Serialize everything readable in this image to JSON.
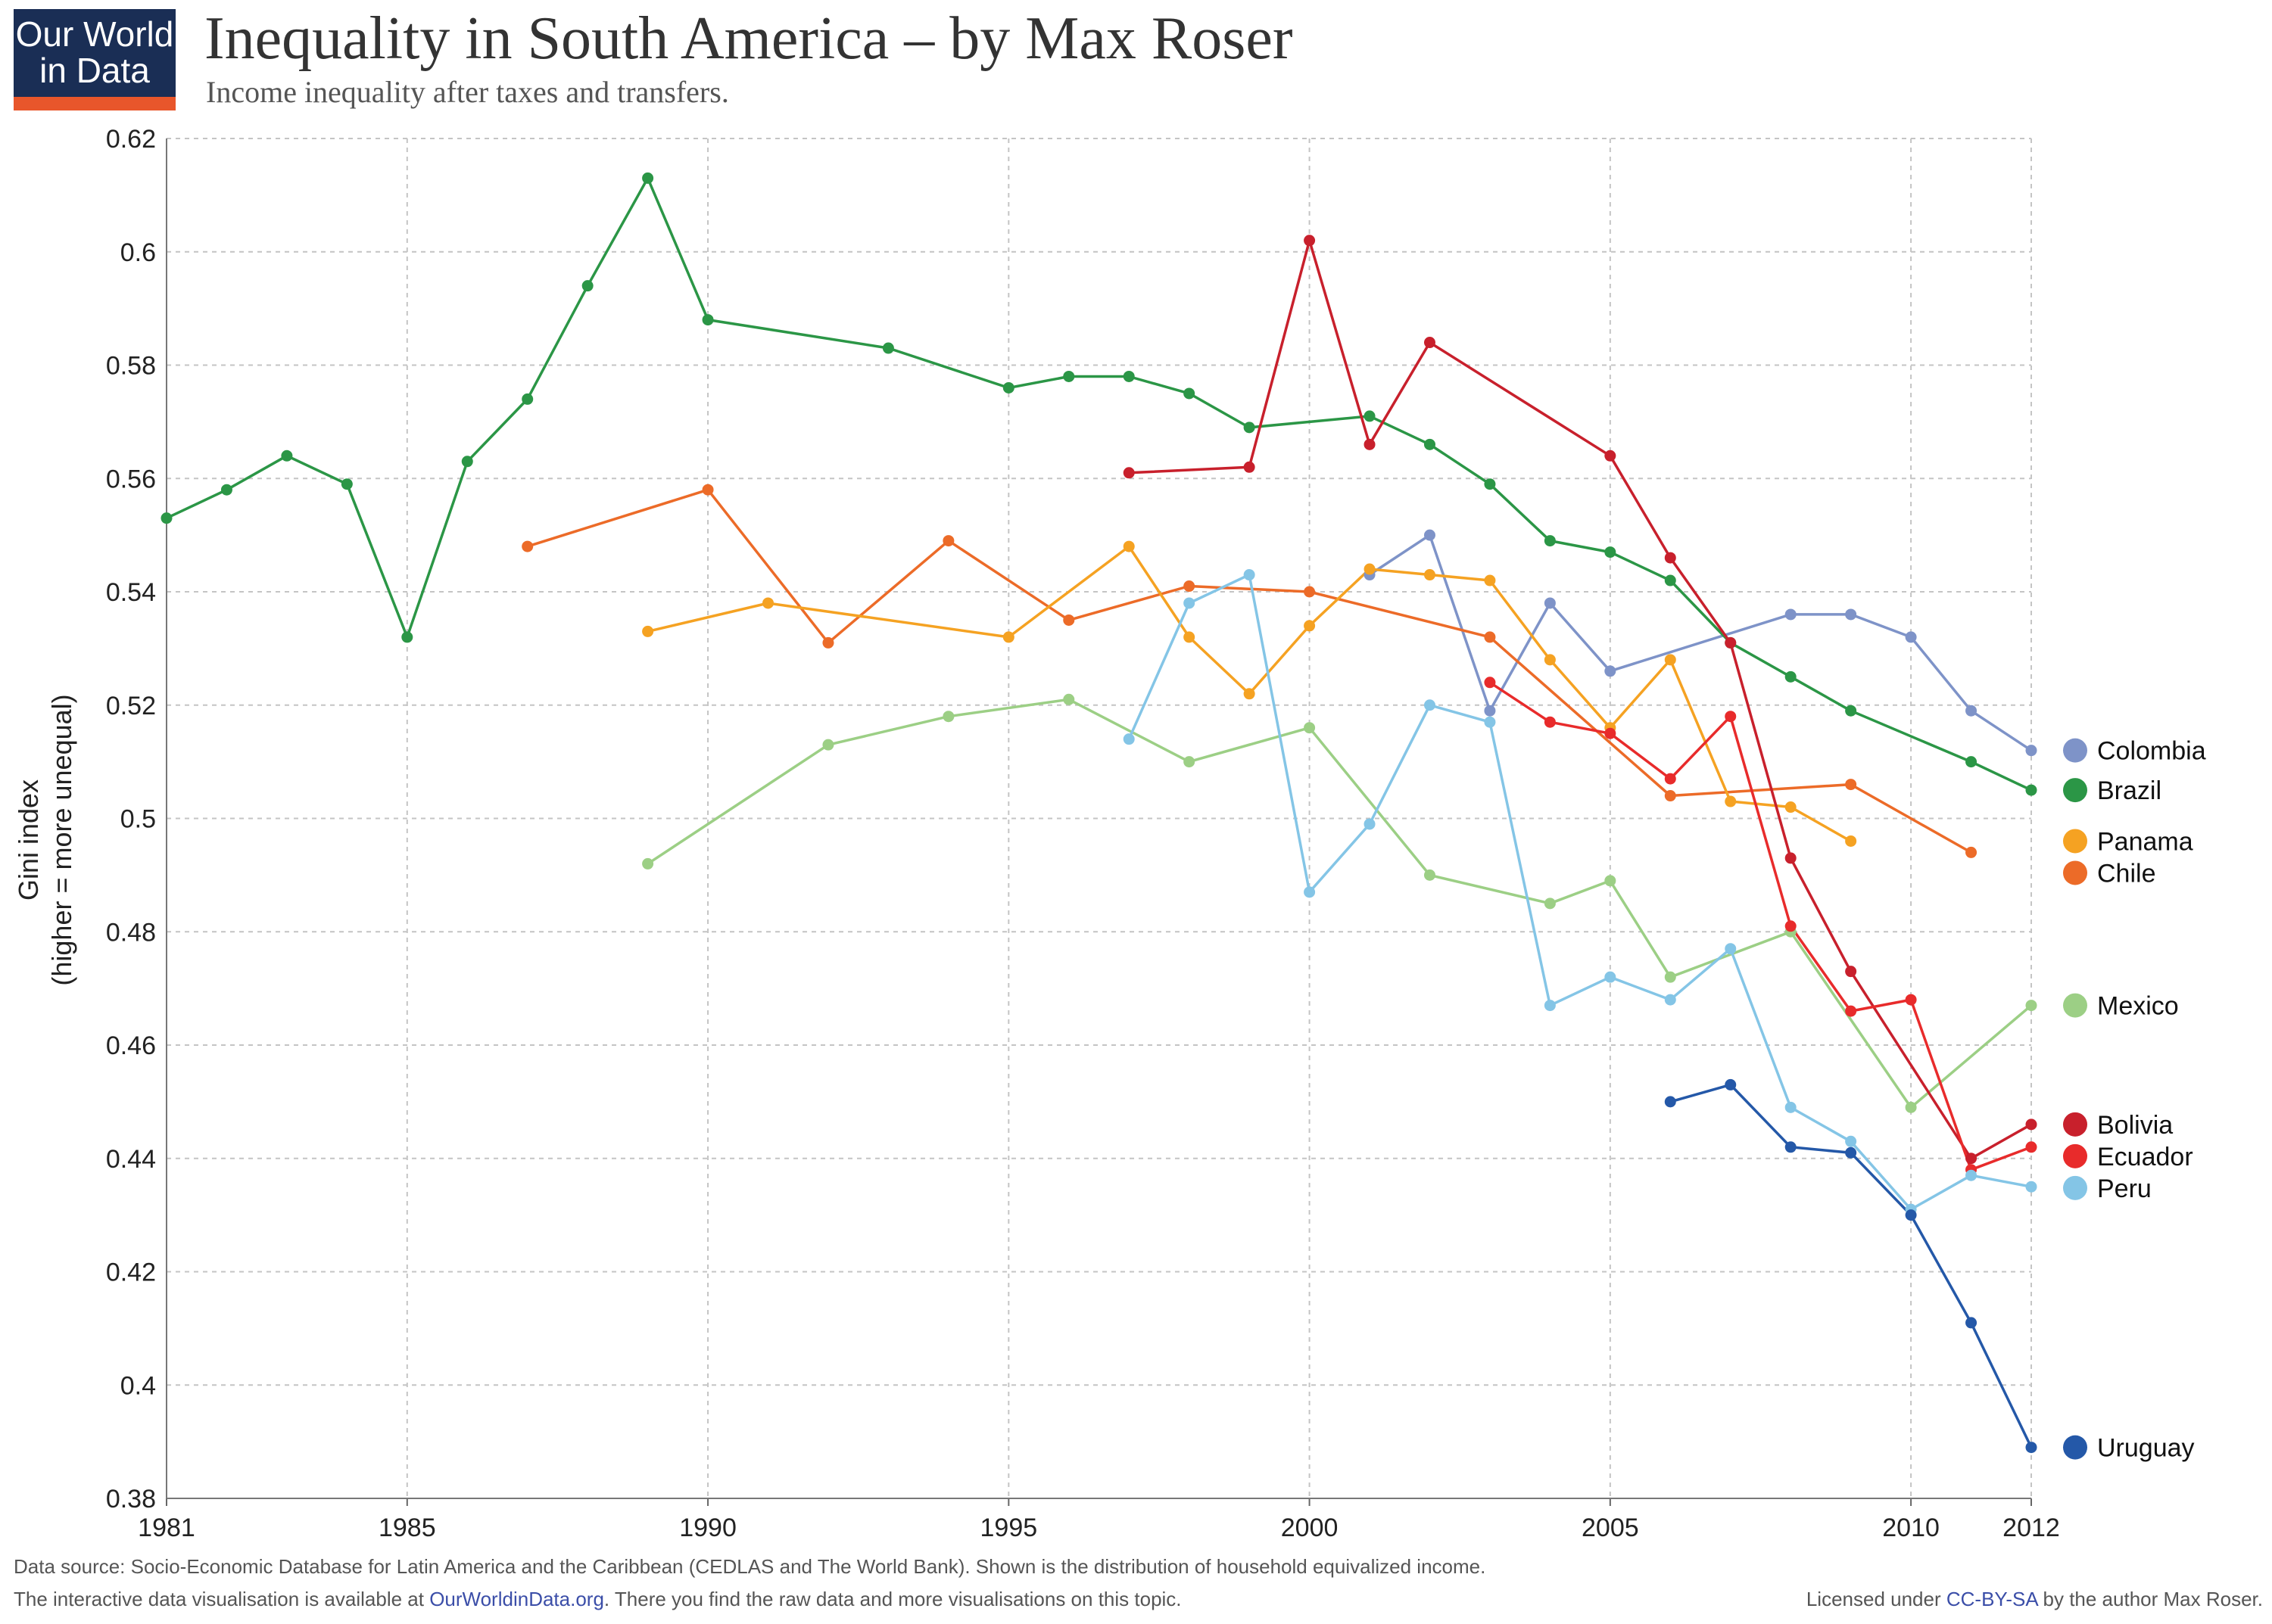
{
  "logo": {
    "line1": "Our World",
    "line2": "in Data"
  },
  "title": "Inequality in South America – by Max Roser",
  "subtitle": "Income inequality after taxes and transfers.",
  "footer": {
    "source": "Data source: Socio-Economic Database for Latin America and the Caribbean (CEDLAS and The World Bank). Shown is the distribution of household equivalized income.",
    "interactive_prefix": "The interactive data visualisation is available at ",
    "interactive_link": "OurWorldinData.org",
    "interactive_suffix": ". There you find the raw data and more visualisations on this topic.",
    "license_prefix": "Licensed under ",
    "license_link": "CC-BY-SA",
    "license_suffix": " by the author Max Roser."
  },
  "chart_data": {
    "type": "line",
    "title": "Inequality in South America – by Max Roser",
    "subtitle": "Income inequality after taxes and transfers.",
    "ylabel_line1": "Gini index",
    "ylabel_line2": "(higher = more unequal)",
    "xlabel": "",
    "xlim": [
      1981,
      2012
    ],
    "ylim": [
      0.38,
      0.62
    ],
    "x_ticks": [
      1981,
      1985,
      1990,
      1995,
      2000,
      2005,
      2010,
      2012
    ],
    "y_ticks": [
      0.38,
      0.4,
      0.42,
      0.44,
      0.46,
      0.48,
      0.5,
      0.52,
      0.54,
      0.56,
      0.58,
      0.6,
      0.62
    ],
    "y_tick_labels": [
      "0.38",
      "0.4",
      "0.42",
      "0.44",
      "0.46",
      "0.48",
      "0.5",
      "0.52",
      "0.54",
      "0.56",
      "0.58",
      "0.6",
      "0.62"
    ],
    "grid": true,
    "legend_position": "right",
    "series": [
      {
        "name": "Colombia",
        "color": "#7e93c8",
        "x": [
          2001,
          2002,
          2003,
          2004,
          2005,
          2008,
          2009,
          2010,
          2011,
          2012
        ],
        "y": [
          0.543,
          0.55,
          0.519,
          0.538,
          0.526,
          0.536,
          0.536,
          0.532,
          0.519,
          0.512
        ]
      },
      {
        "name": "Brazil",
        "color": "#2b9646",
        "x": [
          1981,
          1982,
          1983,
          1984,
          1985,
          1986,
          1987,
          1988,
          1989,
          1990,
          1993,
          1995,
          1996,
          1997,
          1998,
          1999,
          2001,
          2002,
          2003,
          2004,
          2005,
          2006,
          2007,
          2008,
          2009,
          2011,
          2012
        ],
        "y": [
          0.553,
          0.558,
          0.564,
          0.559,
          0.532,
          0.563,
          0.574,
          0.594,
          0.613,
          0.588,
          0.583,
          0.576,
          0.578,
          0.578,
          0.575,
          0.569,
          0.571,
          0.566,
          0.559,
          0.549,
          0.547,
          0.542,
          0.531,
          0.525,
          0.519,
          0.51,
          0.505
        ]
      },
      {
        "name": "Chile",
        "color": "#ec6b28",
        "x": [
          1987,
          1990,
          1992,
          1994,
          1996,
          1998,
          2000,
          2003,
          2006,
          2009,
          2011
        ],
        "y": [
          0.548,
          0.558,
          0.531,
          0.549,
          0.535,
          0.541,
          0.54,
          0.532,
          0.504,
          0.506,
          0.494
        ]
      },
      {
        "name": "Panama",
        "color": "#f5a222",
        "x": [
          1989,
          1991,
          1995,
          1997,
          1998,
          1999,
          2000,
          2001,
          2002,
          2003,
          2004,
          2005,
          2006,
          2007,
          2008,
          2009
        ],
        "y": [
          0.533,
          0.538,
          0.532,
          0.548,
          0.532,
          0.522,
          0.534,
          0.544,
          0.543,
          0.542,
          0.528,
          0.516,
          0.528,
          0.503,
          0.502,
          0.496
        ]
      },
      {
        "name": "Mexico",
        "color": "#9ccf85",
        "x": [
          1989,
          1992,
          1994,
          1996,
          1998,
          2000,
          2002,
          2004,
          2005,
          2006,
          2008,
          2010,
          2012
        ],
        "y": [
          0.492,
          0.513,
          0.518,
          0.521,
          0.51,
          0.516,
          0.49,
          0.485,
          0.489,
          0.472,
          0.48,
          0.449,
          0.467
        ]
      },
      {
        "name": "Bolivia",
        "color": "#c8202c",
        "x": [
          1997,
          1999,
          2000,
          2001,
          2002,
          2005,
          2006,
          2007,
          2008,
          2009,
          2011,
          2012
        ],
        "y": [
          0.561,
          0.562,
          0.602,
          0.566,
          0.584,
          0.564,
          0.546,
          0.531,
          0.493,
          0.473,
          0.44,
          0.446
        ]
      },
      {
        "name": "Ecuador",
        "color": "#e82b2b",
        "x": [
          2003,
          2004,
          2005,
          2006,
          2007,
          2008,
          2009,
          2010,
          2011,
          2012
        ],
        "y": [
          0.524,
          0.517,
          0.515,
          0.507,
          0.518,
          0.481,
          0.466,
          0.468,
          0.438,
          0.442
        ]
      },
      {
        "name": "Peru",
        "color": "#84c5e6",
        "x": [
          1997,
          1998,
          1999,
          2000,
          2001,
          2002,
          2003,
          2004,
          2005,
          2006,
          2007,
          2008,
          2009,
          2010,
          2011,
          2012
        ],
        "y": [
          0.514,
          0.538,
          0.543,
          0.487,
          0.499,
          0.52,
          0.517,
          0.467,
          0.472,
          0.468,
          0.477,
          0.449,
          0.443,
          0.431,
          0.437,
          0.435
        ]
      },
      {
        "name": "Uruguay",
        "color": "#2458a8",
        "x": [
          2006,
          2007,
          2008,
          2009,
          2010,
          2011,
          2012
        ],
        "y": [
          0.45,
          0.453,
          0.442,
          0.441,
          0.43,
          0.411,
          0.389
        ]
      }
    ]
  }
}
